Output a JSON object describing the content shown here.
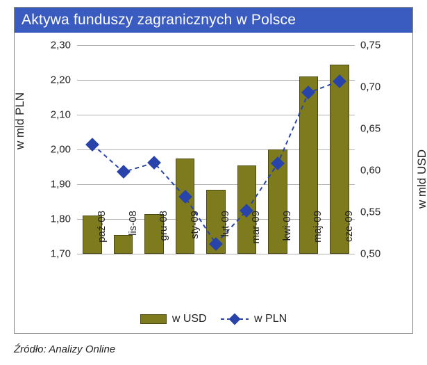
{
  "title": "Aktywa funduszy zagranicznych w Polsce",
  "source_label": "Źródło: Analizy Online",
  "chart": {
    "type": "bar+line",
    "categories": [
      "paź-08",
      "lis-08",
      "gru-08",
      "sty-09",
      "lut-09",
      "mar-09",
      "kwi-09",
      "maj-09",
      "cze-09"
    ],
    "left_axis": {
      "title": "w mld PLN",
      "min": 1.7,
      "max": 2.3,
      "tick_step": 0.1,
      "ticks": [
        "1,70",
        "1,80",
        "1,90",
        "2,00",
        "2,10",
        "2,20",
        "2,30"
      ],
      "title_fontsize": 17,
      "tick_fontsize": 15
    },
    "right_axis": {
      "title": "w mld USD",
      "min": 0.5,
      "max": 0.75,
      "tick_step": 0.05,
      "ticks": [
        "0,50",
        "0,55",
        "0,60",
        "0,65",
        "0,70",
        "0,75"
      ],
      "title_fontsize": 17,
      "tick_fontsize": 15
    },
    "bars": {
      "series_name": "w USD",
      "axis": "left",
      "values": [
        1.81,
        1.755,
        1.815,
        1.975,
        1.885,
        1.955,
        2.0,
        2.21,
        2.245
      ],
      "color": "#7d7b1d",
      "border_color": "#4a4911",
      "bar_width": 0.62
    },
    "line": {
      "series_name": "w PLN",
      "axis": "right",
      "values": [
        0.631,
        0.598,
        0.609,
        0.568,
        0.512,
        0.552,
        0.608,
        0.693,
        0.707
      ],
      "color": "#2843a9",
      "dash_pattern": "6,5",
      "line_width": 2,
      "marker": "diamond",
      "marker_size": 14,
      "marker_color": "#2843a9"
    },
    "grid_color": "#b0b0b0",
    "background_color": "#ffffff",
    "title_bg": "#3a5bbf",
    "title_color": "#ffffff",
    "title_fontsize": 21
  },
  "legend": {
    "items": [
      {
        "label": "w USD",
        "type": "bar"
      },
      {
        "label": "w PLN",
        "type": "line"
      }
    ]
  }
}
